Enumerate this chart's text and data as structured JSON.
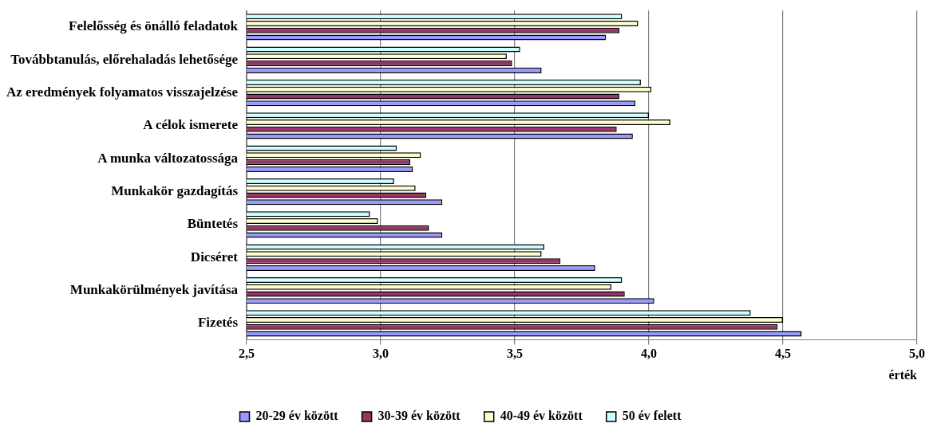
{
  "chart_data": {
    "type": "bar",
    "orientation": "horizontal",
    "xlabel": "érték",
    "categories": [
      "Felelősség és önálló feladatok",
      "Továbbtanulás, előrehaladás lehetősége",
      "Az eredmények folyamatos visszajelzése",
      "A célok ismerete",
      "A munka változatossága",
      "Munkakör gazdagítás",
      "Büntetés",
      "Dicséret",
      "Munkakörülmények javítása",
      "Fizetés"
    ],
    "series": [
      {
        "name": "20-29 év között",
        "color": "#9999ff",
        "values": [
          3.84,
          3.6,
          3.95,
          3.94,
          3.12,
          3.23,
          3.23,
          3.8,
          4.02,
          4.57
        ]
      },
      {
        "name": "30-39 év között",
        "color": "#993366",
        "values": [
          3.89,
          3.49,
          3.89,
          3.88,
          3.11,
          3.17,
          3.18,
          3.67,
          3.91,
          4.48
        ]
      },
      {
        "name": "40-49 év között",
        "color": "#ffffcc",
        "values": [
          3.96,
          3.47,
          4.01,
          4.08,
          3.15,
          3.13,
          2.99,
          3.6,
          3.86,
          4.5
        ]
      },
      {
        "name": "50 év felett",
        "color": "#ccffff",
        "values": [
          3.9,
          3.52,
          3.97,
          4.0,
          3.06,
          3.05,
          2.96,
          3.61,
          3.9,
          4.38
        ]
      }
    ],
    "xlim": [
      2.5,
      5.0
    ],
    "xticks": [
      {
        "value": 2.5,
        "label": "2,5"
      },
      {
        "value": 3.0,
        "label": "3,0"
      },
      {
        "value": 3.5,
        "label": "3,5"
      },
      {
        "value": 4.0,
        "label": "4,0"
      },
      {
        "value": 4.5,
        "label": "4,5"
      },
      {
        "value": 5.0,
        "label": "5,0"
      }
    ],
    "grid": "x",
    "legend": "bottom"
  }
}
